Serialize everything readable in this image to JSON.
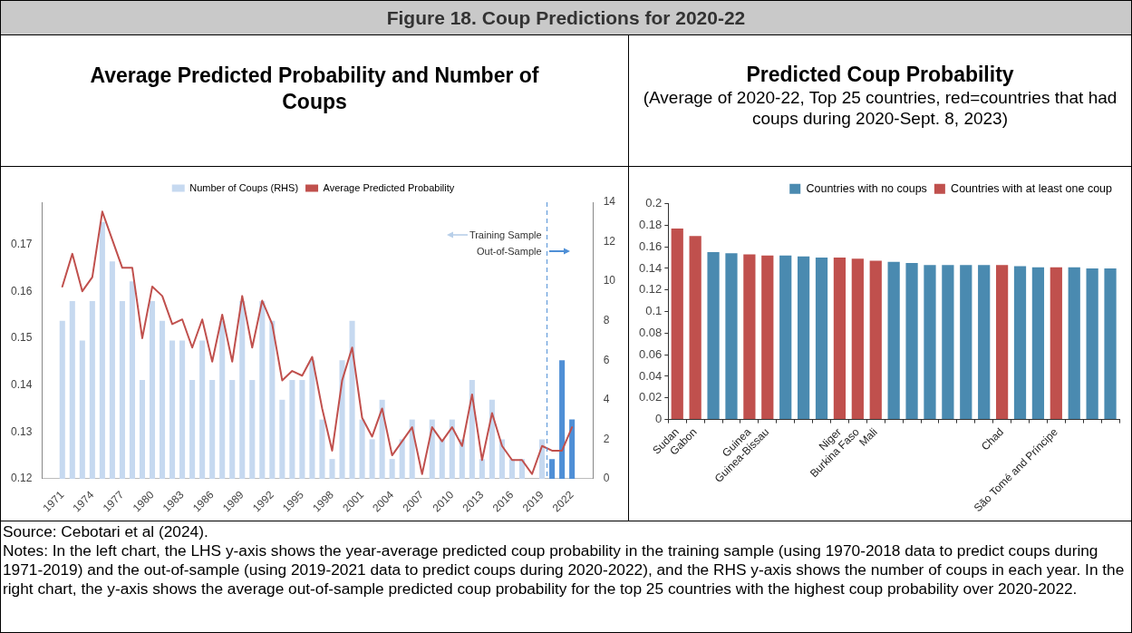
{
  "chart_data": [
    {
      "type": "bar",
      "title": "Figure 18. Coup Predictions for 2020-22",
      "subtitle": "Average Predicted Probability and Number of Coups",
      "x": [
        1971,
        1972,
        1973,
        1974,
        1975,
        1976,
        1977,
        1978,
        1979,
        1980,
        1981,
        1982,
        1983,
        1984,
        1985,
        1986,
        1987,
        1988,
        1989,
        1990,
        1991,
        1992,
        1993,
        1994,
        1995,
        1996,
        1997,
        1998,
        1999,
        2000,
        2001,
        2002,
        2003,
        2004,
        2005,
        2006,
        2007,
        2008,
        2009,
        2010,
        2011,
        2012,
        2013,
        2014,
        2015,
        2016,
        2017,
        2018,
        2019,
        2020,
        2021,
        2022
      ],
      "series": [
        {
          "name": "Number of Coups (RHS)",
          "type": "bar",
          "axis": "y2",
          "color": "#c6d9f0",
          "colors": [
            "#c6d9f0",
            "#c6d9f0",
            "#c6d9f0",
            "#c6d9f0",
            "#c6d9f0",
            "#c6d9f0",
            "#c6d9f0",
            "#c6d9f0",
            "#c6d9f0",
            "#c6d9f0",
            "#c6d9f0",
            "#c6d9f0",
            "#c6d9f0",
            "#c6d9f0",
            "#c6d9f0",
            "#c6d9f0",
            "#c6d9f0",
            "#c6d9f0",
            "#c6d9f0",
            "#c6d9f0",
            "#c6d9f0",
            "#c6d9f0",
            "#c6d9f0",
            "#c6d9f0",
            "#c6d9f0",
            "#c6d9f0",
            "#c6d9f0",
            "#c6d9f0",
            "#c6d9f0",
            "#c6d9f0",
            "#c6d9f0",
            "#c6d9f0",
            "#c6d9f0",
            "#c6d9f0",
            "#c6d9f0",
            "#c6d9f0",
            "#c6d9f0",
            "#c6d9f0",
            "#c6d9f0",
            "#c6d9f0",
            "#c6d9f0",
            "#c6d9f0",
            "#c6d9f0",
            "#c6d9f0",
            "#c6d9f0",
            "#c6d9f0",
            "#c6d9f0",
            "#c6d9f0",
            "#c6d9f0",
            "#4f8fd6",
            "#4f8fd6",
            "#4f8fd6"
          ],
          "values": [
            8,
            9,
            7,
            9,
            13,
            11,
            9,
            10,
            5,
            9,
            8,
            7,
            7,
            5,
            7,
            5,
            8,
            5,
            9,
            5,
            9,
            8,
            4,
            5,
            5,
            6,
            3,
            1,
            6,
            8,
            3,
            2,
            4,
            1,
            2,
            3,
            0,
            3,
            2,
            3,
            2,
            5,
            1,
            4,
            2,
            1,
            1,
            0,
            2,
            1,
            6,
            3
          ]
        },
        {
          "name": "Average Predicted Probability",
          "type": "line",
          "axis": "y",
          "color": "#c0504d",
          "values": [
            0.161,
            0.168,
            0.16,
            0.163,
            0.177,
            0.171,
            0.165,
            0.165,
            0.15,
            0.161,
            0.159,
            0.153,
            0.154,
            0.148,
            0.154,
            0.145,
            0.155,
            0.145,
            0.159,
            0.148,
            0.158,
            0.153,
            0.141,
            0.143,
            0.142,
            0.146,
            0.135,
            0.126,
            0.141,
            0.148,
            0.133,
            0.129,
            0.135,
            0.125,
            0.128,
            0.131,
            0.121,
            0.131,
            0.128,
            0.131,
            0.127,
            0.138,
            0.124,
            0.134,
            0.127,
            0.124,
            0.124,
            0.121,
            0.127,
            0.126,
            0.126,
            0.131
          ]
        }
      ],
      "xlim": [
        1970.5,
        2022.6
      ],
      "xticks": [
        1971,
        1974,
        1977,
        1980,
        1983,
        1986,
        1989,
        1992,
        1995,
        1998,
        2001,
        2004,
        2007,
        2010,
        2013,
        2016,
        2019,
        2022
      ],
      "ylim": [
        0.12,
        0.179
      ],
      "yticks": [
        0.12,
        0.13,
        0.14,
        0.15,
        0.16,
        0.17
      ],
      "y2lim": [
        0,
        14
      ],
      "y2ticks": [
        0,
        2,
        4,
        6,
        8,
        10,
        12,
        14
      ],
      "ref_lines": [
        {
          "axis": "x",
          "value": 2019.5,
          "color": "#4f8fd6",
          "line_style": "dashed"
        }
      ],
      "annotations": [
        {
          "text": "Training Sample",
          "x": 2019.5,
          "y": 0.172
        },
        {
          "text": "Out-of-Sample",
          "x": 2019.5,
          "y": 0.1685
        },
        "Source: Cebotari et al (2024).",
        "Notes: In the left chart, the LHS y-axis shows the year-average predicted coup probability in the training sample (using 1970-2018 data to predict coups during 1971-2019) and the out-of-sample (using 2019-2021 data to predict coups during 2020-2022), and the RHS y-axis shows the number of coups in each year. In the right chart, the y-axis shows the average out-of-sample predicted coup probability for the top 25 countries with the highest coup probability over 2020-2022."
      ],
      "legend": "top",
      "marker": "none",
      "line_style": "solid"
    },
    {
      "type": "bar",
      "title": "Predicted Coup Probability",
      "subtitle": "(Average of 2020-22, Top 25 countries, red=countries that had coups during 2020-Sept. 8, 2023)",
      "categories": [
        "Sudan",
        "Gabon",
        null,
        null,
        "Guinea",
        "Guinea-Bissau",
        null,
        null,
        null,
        "Niger",
        "Burkina Faso",
        "Mali",
        null,
        null,
        null,
        null,
        null,
        null,
        "Chad",
        null,
        null,
        "São Tomé and Príncipe",
        null,
        null,
        null
      ],
      "series": [
        {
          "name": "Countries with no coups",
          "color": "#4a8ab0",
          "values": [
            null,
            null,
            0.155,
            0.154,
            null,
            null,
            0.152,
            0.151,
            0.15,
            null,
            null,
            null,
            0.146,
            0.145,
            0.143,
            0.143,
            0.143,
            0.143,
            null,
            0.142,
            0.141,
            null,
            0.141,
            0.14,
            0.14
          ]
        },
        {
          "name": "Countries with at least one coup",
          "color": "#c0504d",
          "values": [
            0.177,
            0.17,
            null,
            null,
            0.153,
            0.152,
            null,
            null,
            null,
            0.15,
            0.149,
            0.147,
            null,
            null,
            null,
            null,
            null,
            null,
            0.143,
            null,
            null,
            0.141,
            null,
            null,
            null
          ]
        }
      ],
      "ylim": [
        0,
        0.2
      ],
      "yticks": [
        0,
        0.02,
        0.04,
        0.06,
        0.08,
        0.1,
        0.12,
        0.14,
        0.16,
        0.18,
        0.2
      ],
      "legend": "top right"
    }
  ]
}
